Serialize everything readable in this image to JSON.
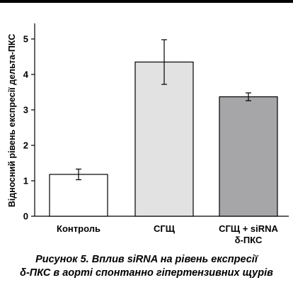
{
  "chart_data": {
    "type": "bar",
    "categories": [
      "Контроль",
      "СГЩ",
      "СГЩ + siRNA δ-ПКС"
    ],
    "category_lines": [
      [
        "Контроль"
      ],
      [
        "СГЩ"
      ],
      [
        "СГЩ + siRNA",
        "δ-ПКС"
      ]
    ],
    "values": [
      1.18,
      4.35,
      3.37
    ],
    "errors": [
      0.15,
      0.63,
      0.11
    ],
    "bar_colors": [
      "#ffffff",
      "#e2e2e2",
      "#a6a6a8"
    ],
    "ylabel": "Відносний рівень експресії дельта-ПКС",
    "xlabel": "",
    "ylim": [
      0,
      5.5
    ],
    "yticks": [
      0,
      1,
      2,
      3,
      4,
      5
    ],
    "grid": false,
    "legend": "none"
  },
  "caption": {
    "line1": "Рисунок 5. Вплив siRNA на рівень експресії",
    "line2": "δ-ПКС в аорті спонтанно гіпертензивних щурів"
  }
}
